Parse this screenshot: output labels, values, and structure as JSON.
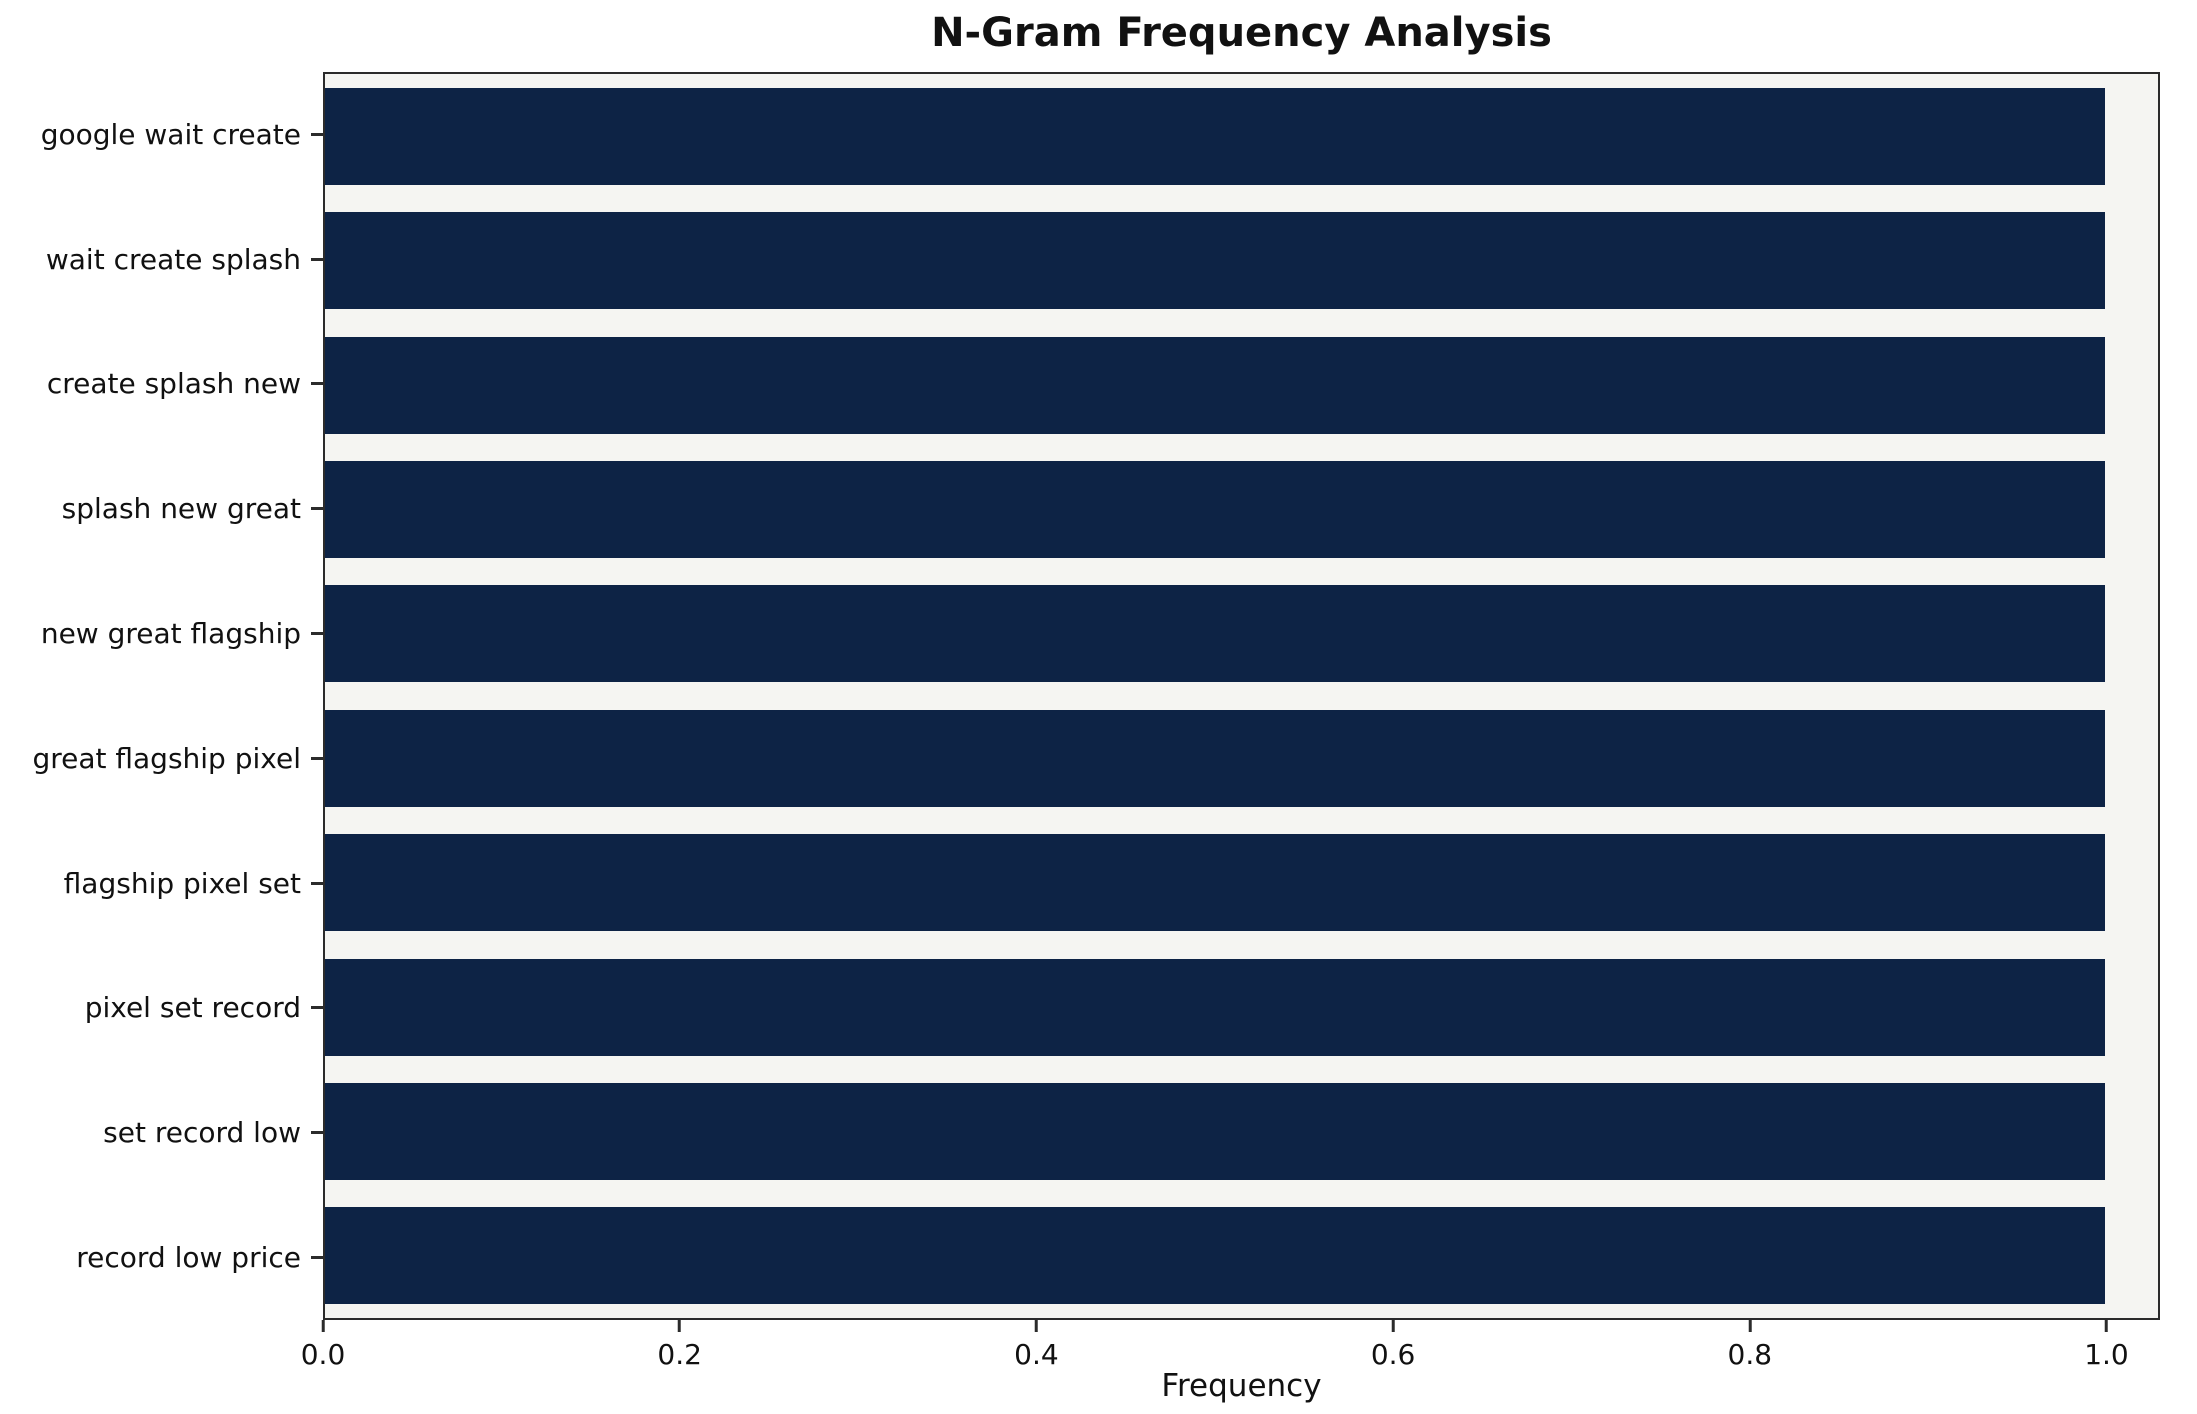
{
  "chart_data": {
    "type": "bar",
    "orientation": "horizontal",
    "title": "N-Gram Frequency Analysis",
    "xlabel": "Frequency",
    "ylabel": "",
    "categories": [
      "google wait create",
      "wait create splash",
      "create splash new",
      "splash new great",
      "new great flagship",
      "great flagship pixel",
      "flagship pixel set",
      "pixel set record",
      "set record low",
      "record low price"
    ],
    "values": [
      1.0,
      1.0,
      1.0,
      1.0,
      1.0,
      1.0,
      1.0,
      1.0,
      1.0,
      1.0
    ],
    "xlim": [
      0,
      1.03
    ],
    "xticks": [
      0.0,
      0.2,
      0.4,
      0.6,
      0.8,
      1.0
    ],
    "xtick_labels": [
      "0.0",
      "0.2",
      "0.4",
      "0.6",
      "0.8",
      "1.0"
    ],
    "grid": false,
    "legend": null,
    "colors": {
      "bar": "#0d2345",
      "plot_background": "#f5f5f2",
      "figure_background": "#ffffff",
      "spine": "#2b2b2b",
      "text": "#111111"
    }
  }
}
